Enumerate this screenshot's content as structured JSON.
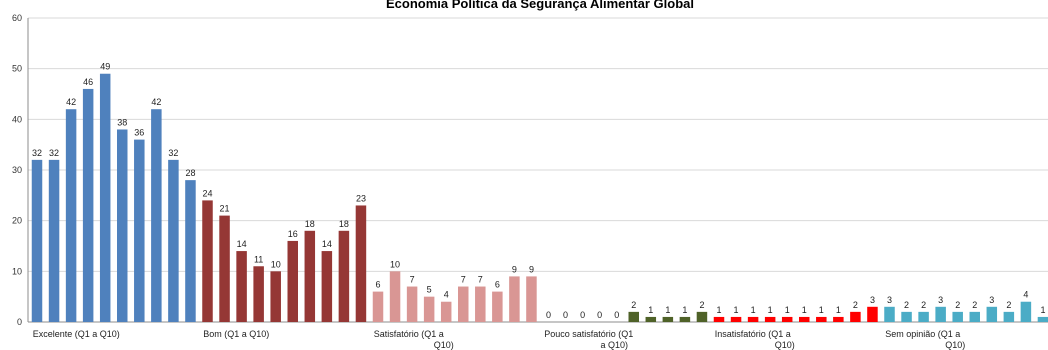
{
  "chart_data": {
    "type": "bar",
    "title": "Economia Política da Segurança Alimentar Global",
    "xlabel": "",
    "ylabel": "",
    "ylim": [
      0,
      60
    ],
    "yticks": [
      0,
      10,
      20,
      30,
      40,
      50,
      60
    ],
    "grid": true,
    "legend": "none",
    "groups": [
      {
        "label_lines": [
          "Excelente (Q1 a Q10)"
        ],
        "color": "#4f81bd",
        "values": [
          32,
          32,
          42,
          46,
          49,
          38,
          36,
          42,
          32,
          28
        ]
      },
      {
        "label_lines": [
          "Bom (Q1 a Q10)"
        ],
        "color": "#953735",
        "values": [
          24,
          21,
          14,
          11,
          10,
          16,
          18,
          14,
          18,
          23
        ]
      },
      {
        "label_lines": [
          "Satisfatório (Q1 a",
          "Q10)"
        ],
        "color": "#d99694",
        "values": [
          6,
          10,
          7,
          5,
          4,
          7,
          7,
          6,
          9,
          9
        ]
      },
      {
        "label_lines": [
          "Pouco satisfatório (Q1",
          "a Q10)"
        ],
        "color": "#4f6228",
        "values": [
          0,
          0,
          0,
          0,
          0,
          2,
          1,
          1,
          1,
          2
        ]
      },
      {
        "label_lines": [
          "Insatisfatório (Q1 a",
          "Q10)"
        ],
        "color": "#ff0000",
        "values": [
          1,
          1,
          1,
          1,
          1,
          1,
          1,
          1,
          2,
          3
        ]
      },
      {
        "label_lines": [
          "Sem opinião (Q1 a",
          "Q10)"
        ],
        "color": "#4bacc6",
        "values": [
          3,
          2,
          2,
          3,
          2,
          2,
          3,
          2,
          4,
          1
        ]
      }
    ]
  }
}
